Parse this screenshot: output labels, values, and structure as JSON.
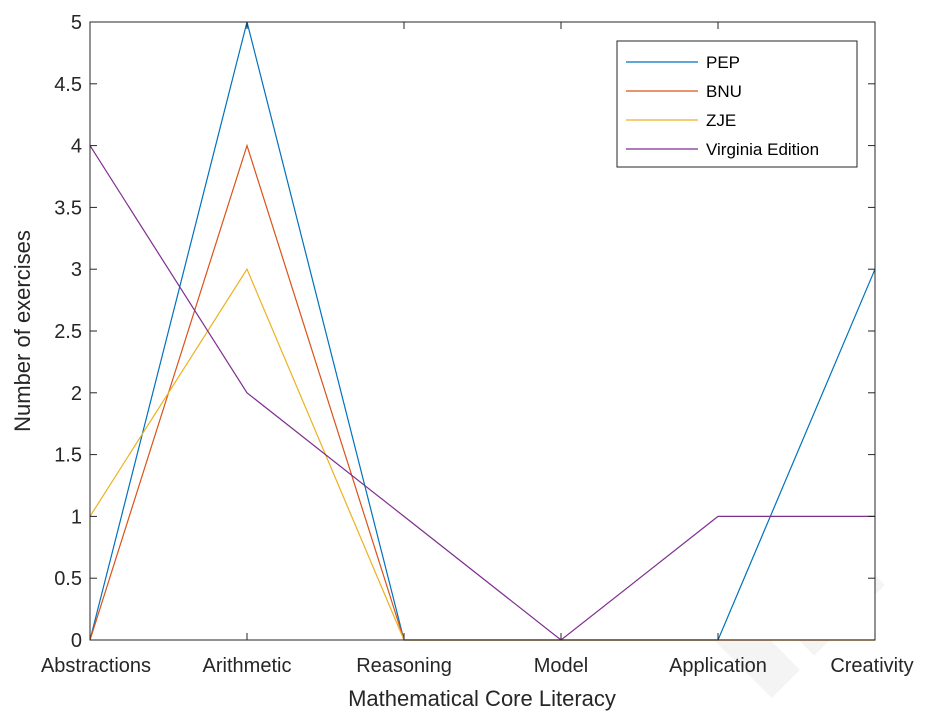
{
  "chart_data": {
    "type": "line",
    "xlabel": "Mathematical Core Literacy",
    "ylabel": "Number of exercises",
    "categories": [
      "Abstractions",
      "Arithmetic",
      "Reasoning",
      "Model",
      "Application",
      "Creativity"
    ],
    "ylim": [
      0,
      5
    ],
    "yticks": [
      "0",
      "0.5",
      "1",
      "1.5",
      "2",
      "2.5",
      "3",
      "3.5",
      "4",
      "4.5",
      "5"
    ],
    "grid": false,
    "legend_position": "top-right",
    "series": [
      {
        "name": "PEP",
        "color": "#0072BD",
        "values": [
          0,
          5,
          0,
          0,
          0,
          3
        ]
      },
      {
        "name": "BNU",
        "color": "#D95319",
        "values": [
          0,
          4,
          0,
          0,
          0,
          0
        ]
      },
      {
        "name": "ZJE",
        "color": "#EDB120",
        "values": [
          1,
          3,
          0,
          0,
          0,
          0
        ]
      },
      {
        "name": "Virginia Edition",
        "color": "#7E2F8E",
        "values": [
          4,
          2,
          1,
          0,
          1,
          1
        ]
      }
    ]
  }
}
